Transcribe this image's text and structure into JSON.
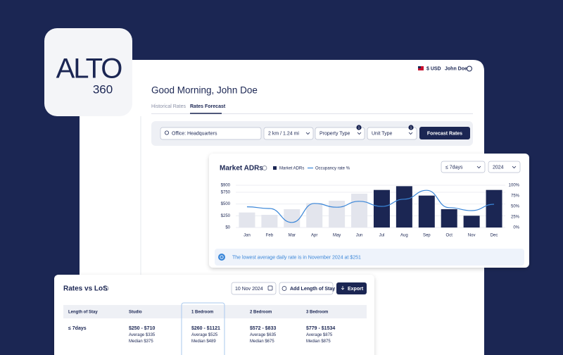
{
  "logo": {
    "wordmark": "ALTO",
    "suffix": "360"
  },
  "header": {
    "currency": "$ USD",
    "user": "John Doe"
  },
  "greeting": "Good Morning, John Doe",
  "tabs": [
    "Historical Rates",
    "Rates Forecast"
  ],
  "filters": {
    "location": "Office: Headquarters",
    "radius": "2 km / 1.24 mi",
    "property_type": {
      "label": "Property Type",
      "badge": "1"
    },
    "unit_type": {
      "label": "Unit Type",
      "badge": "1"
    },
    "button": "Forecast Rates"
  },
  "chart_data": {
    "type": "bar",
    "title": "Market ADRs",
    "stay_filter": "≤ 7days",
    "year_filter": "2024",
    "categories": [
      "Jan",
      "Feb",
      "Mar",
      "Apr",
      "May",
      "Jun",
      "Jul",
      "Aug",
      "Sep",
      "Oct",
      "Nov",
      "Dec"
    ],
    "series": [
      {
        "name": "Market ADRs",
        "color": "#1b2653",
        "colors": [
          "#e3e5ed",
          "#e3e5ed",
          "#e3e5ed",
          "#e3e5ed",
          "#e3e5ed",
          "#e3e5ed",
          "#1b2653",
          "#1b2653",
          "#1b2653",
          "#1b2653",
          "#1b2653",
          "#1b2653"
        ],
        "values": [
          320,
          270,
          390,
          520,
          570,
          720,
          800,
          880,
          680,
          390,
          251,
          800
        ]
      },
      {
        "name": "Occupancy rate %",
        "type": "line",
        "axis": "y2",
        "color": "#3a86d8",
        "values": [
          49,
          45,
          12,
          57,
          48,
          62,
          50,
          67,
          88,
          47,
          40,
          55
        ]
      }
    ],
    "ylim": [
      0,
      900
    ],
    "yticks": [
      {
        "value": 0,
        "label": "$0"
      },
      {
        "value": 250,
        "label": "$250"
      },
      {
        "value": 500,
        "label": "$500"
      },
      {
        "value": 750,
        "label": "$750"
      },
      {
        "value": 900,
        "label": "$900"
      }
    ],
    "y2lim": [
      0,
      100
    ],
    "y2ticks": [
      {
        "value": 0,
        "label": "0%"
      },
      {
        "value": 25,
        "label": "25%"
      },
      {
        "value": 50,
        "label": "50%"
      },
      {
        "value": 75,
        "label": "75%"
      },
      {
        "value": 100,
        "label": "100%"
      }
    ],
    "grid": true,
    "note": "The lowest average daily rate is in November 2024 at $251"
  },
  "rates_table": {
    "title": "Rates vs LoS",
    "date": "10 Nov 2024",
    "add_button": "Add Length of Stay",
    "export_button": "Export",
    "columns": [
      "Length of Stay",
      "Studio",
      "1 Bedroom",
      "2 Bedroom",
      "3 Bedroom"
    ],
    "rows": [
      {
        "label": "≤ 7days",
        "cells": [
          {
            "range": "$250 - $710",
            "average": "Average $335",
            "median": "Median $375"
          },
          {
            "range": "$260 - $1121",
            "average": "Average $525",
            "median": "Median $489"
          },
          {
            "range": "$572 - $833",
            "average": "Average $635",
            "median": "Median $675"
          },
          {
            "range": "$779 - $1534",
            "average": "Average $875",
            "median": "Median $875"
          }
        ]
      }
    ]
  }
}
